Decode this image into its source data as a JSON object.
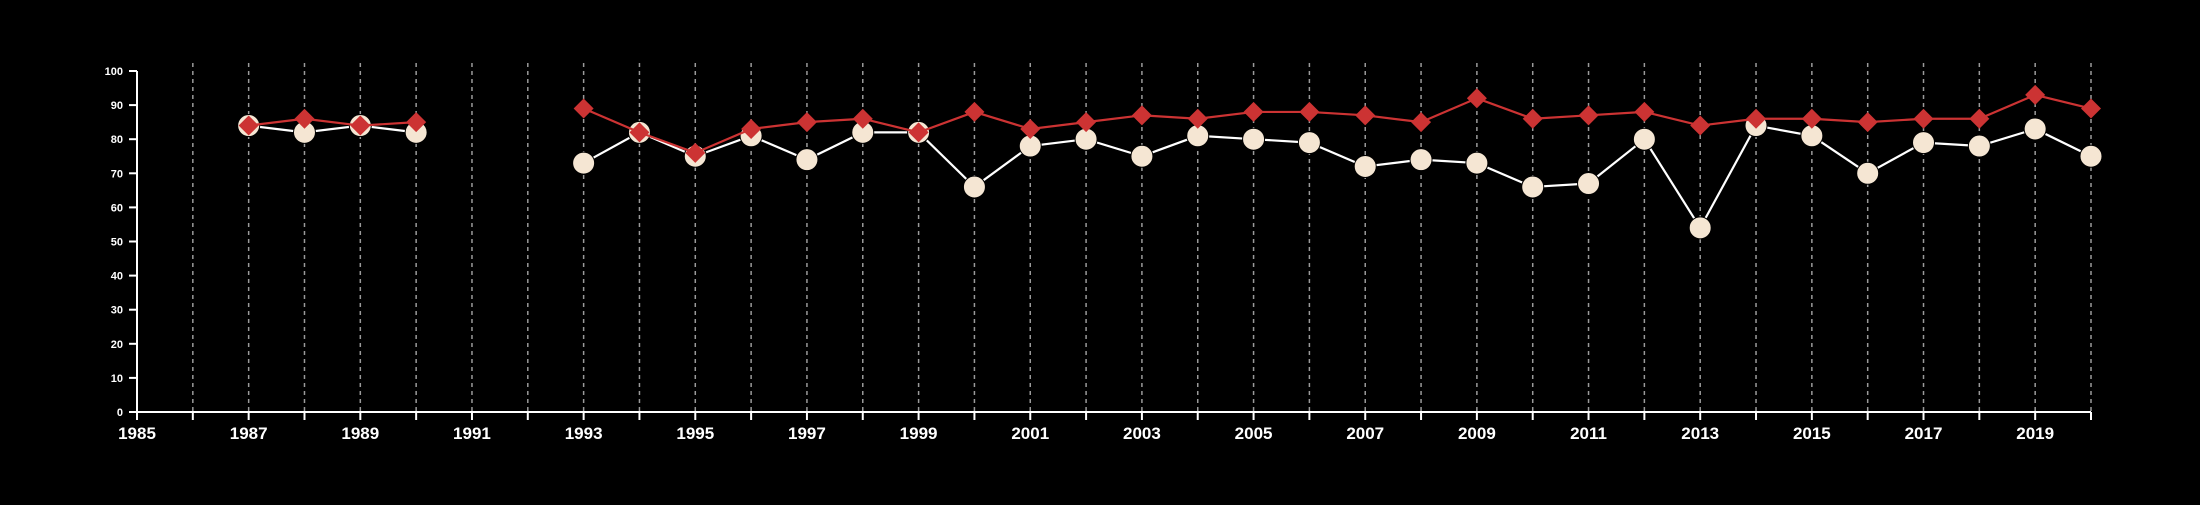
{
  "chart_data": {
    "type": "line",
    "title": "",
    "xlabel": "",
    "ylabel": "",
    "xlim": [
      1985,
      2020
    ],
    "ylim": [
      0,
      100
    ],
    "grid": "vertical dashed at each year",
    "x_ticks": [
      1985,
      1987,
      1989,
      1991,
      1993,
      1995,
      1997,
      1999,
      2001,
      2003,
      2005,
      2007,
      2009,
      2011,
      2013,
      2015,
      2017,
      2019
    ],
    "y_ticks": [
      0,
      10,
      20,
      30,
      40,
      50,
      60,
      70,
      80,
      90,
      100
    ],
    "x": [
      1987,
      1988,
      1989,
      1990,
      1993,
      1994,
      1995,
      1996,
      1997,
      1998,
      1999,
      2000,
      2001,
      2002,
      2003,
      2004,
      2005,
      2006,
      2007,
      2008,
      2009,
      2010,
      2011,
      2012,
      2013,
      2014,
      2015,
      2016,
      2017,
      2018,
      2019,
      2020
    ],
    "series": [
      {
        "marker": "diamond",
        "color": "#cc3333",
        "values": [
          84,
          86,
          84,
          85,
          89,
          82,
          76,
          83,
          85,
          86,
          82,
          88,
          83,
          85,
          87,
          86,
          88,
          88,
          87,
          85,
          92,
          86,
          87,
          88,
          84,
          86,
          86,
          85,
          86,
          86,
          93,
          89
        ]
      },
      {
        "marker": "circle",
        "color": "#f5e6d3",
        "line_color": "#ffffff",
        "values": [
          84,
          82,
          84,
          82,
          73,
          82,
          75,
          81,
          74,
          82,
          82,
          66,
          78,
          80,
          75,
          81,
          80,
          79,
          72,
          74,
          73,
          66,
          67,
          80,
          54,
          84,
          81,
          70,
          79,
          78,
          83,
          75
        ]
      }
    ]
  }
}
